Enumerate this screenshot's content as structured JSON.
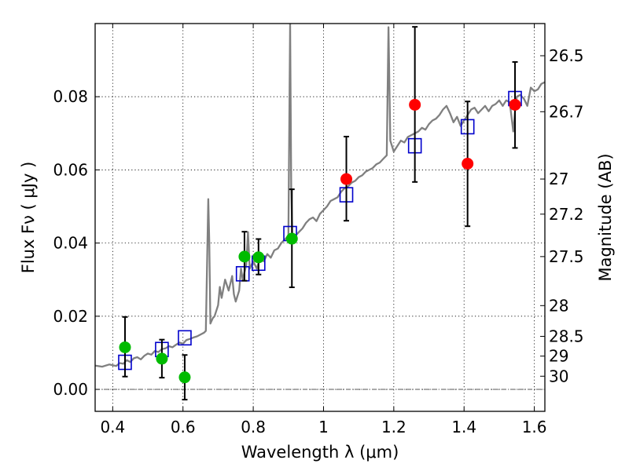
{
  "chart_data": {
    "type": "scatter",
    "xlabel": "Wavelength  λ (μm)",
    "ylabel": "Flux  Fν  ( μJy )",
    "y2label": "Magnitude (AB)",
    "xlim": [
      0.35,
      1.63
    ],
    "ylim": [
      -0.006,
      0.1
    ],
    "x_ticks": [
      0.4,
      0.6,
      0.8,
      1.0,
      1.2,
      1.4,
      1.6
    ],
    "x_tick_labels": [
      "0.4",
      "0.6",
      "0.8",
      "1",
      "1.2",
      "1.4",
      "1.6"
    ],
    "y_ticks": [
      0.0,
      0.02,
      0.04,
      0.06,
      0.08
    ],
    "y_tick_labels": [
      "0.00",
      "0.02",
      "0.04",
      "0.06",
      "0.08"
    ],
    "y2_ticks": [
      {
        "label": "26.5",
        "flux": 0.0912
      },
      {
        "label": "26.7",
        "flux": 0.0759
      },
      {
        "label": "27",
        "flux": 0.0575
      },
      {
        "label": "27.2",
        "flux": 0.0479
      },
      {
        "label": "27.5",
        "flux": 0.0363
      },
      {
        "label": "28",
        "flux": 0.0229
      },
      {
        "label": "28.5",
        "flux": 0.0145
      },
      {
        "label": "29",
        "flux": 0.0091
      },
      {
        "label": "30",
        "flux": 0.0036
      }
    ],
    "grid": true,
    "colors": {
      "spectrum": "#808080",
      "model": "#0000cc",
      "green": "#00bb00",
      "red": "#ff0000",
      "error": "#000000",
      "zero_line": "#555555"
    },
    "series": [
      {
        "name": "model-spectrum",
        "type": "line",
        "points": [
          [
            0.35,
            0.0065
          ],
          [
            0.37,
            0.0062
          ],
          [
            0.39,
            0.0068
          ],
          [
            0.41,
            0.0064
          ],
          [
            0.42,
            0.0072
          ],
          [
            0.43,
            0.007
          ],
          [
            0.44,
            0.008
          ],
          [
            0.45,
            0.0075
          ],
          [
            0.46,
            0.0085
          ],
          [
            0.47,
            0.0088
          ],
          [
            0.48,
            0.0082
          ],
          [
            0.49,
            0.0092
          ],
          [
            0.5,
            0.0098
          ],
          [
            0.51,
            0.0095
          ],
          [
            0.52,
            0.0105
          ],
          [
            0.53,
            0.0102
          ],
          [
            0.54,
            0.011
          ],
          [
            0.55,
            0.0112
          ],
          [
            0.56,
            0.0118
          ],
          [
            0.57,
            0.0115
          ],
          [
            0.58,
            0.0122
          ],
          [
            0.59,
            0.0128
          ],
          [
            0.6,
            0.0125
          ],
          [
            0.61,
            0.0135
          ],
          [
            0.62,
            0.0138
          ],
          [
            0.63,
            0.0142
          ],
          [
            0.64,
            0.0145
          ],
          [
            0.65,
            0.015
          ],
          [
            0.66,
            0.0155
          ],
          [
            0.665,
            0.016
          ],
          [
            0.672,
            0.052
          ],
          [
            0.675,
            0.04
          ],
          [
            0.678,
            0.018
          ],
          [
            0.685,
            0.0195
          ],
          [
            0.69,
            0.02
          ],
          [
            0.7,
            0.023
          ],
          [
            0.705,
            0.028
          ],
          [
            0.71,
            0.025
          ],
          [
            0.72,
            0.03
          ],
          [
            0.73,
            0.027
          ],
          [
            0.74,
            0.031
          ],
          [
            0.745,
            0.026
          ],
          [
            0.75,
            0.024
          ],
          [
            0.76,
            0.027
          ],
          [
            0.765,
            0.033
          ],
          [
            0.77,
            0.03
          ],
          [
            0.78,
            0.034
          ],
          [
            0.785,
            0.043
          ],
          [
            0.79,
            0.033
          ],
          [
            0.8,
            0.035
          ],
          [
            0.81,
            0.033
          ],
          [
            0.82,
            0.036
          ],
          [
            0.83,
            0.035
          ],
          [
            0.84,
            0.037
          ],
          [
            0.85,
            0.036
          ],
          [
            0.86,
            0.038
          ],
          [
            0.87,
            0.0385
          ],
          [
            0.88,
            0.04
          ],
          [
            0.89,
            0.041
          ],
          [
            0.9,
            0.042
          ],
          [
            0.905,
            0.1
          ],
          [
            0.908,
            0.055
          ],
          [
            0.912,
            0.04
          ],
          [
            0.92,
            0.042
          ],
          [
            0.93,
            0.043
          ],
          [
            0.94,
            0.044
          ],
          [
            0.95,
            0.0455
          ],
          [
            0.96,
            0.0465
          ],
          [
            0.97,
            0.047
          ],
          [
            0.98,
            0.046
          ],
          [
            0.99,
            0.048
          ],
          [
            1.0,
            0.049
          ],
          [
            1.01,
            0.05
          ],
          [
            1.02,
            0.0515
          ],
          [
            1.03,
            0.052
          ],
          [
            1.04,
            0.0525
          ],
          [
            1.05,
            0.054
          ],
          [
            1.06,
            0.055
          ],
          [
            1.07,
            0.0555
          ],
          [
            1.08,
            0.0565
          ],
          [
            1.09,
            0.057
          ],
          [
            1.1,
            0.058
          ],
          [
            1.11,
            0.0585
          ],
          [
            1.12,
            0.0595
          ],
          [
            1.13,
            0.06
          ],
          [
            1.14,
            0.0605
          ],
          [
            1.15,
            0.0615
          ],
          [
            1.16,
            0.062
          ],
          [
            1.17,
            0.063
          ],
          [
            1.18,
            0.064
          ],
          [
            1.185,
            0.099
          ],
          [
            1.19,
            0.068
          ],
          [
            1.2,
            0.065
          ],
          [
            1.21,
            0.0665
          ],
          [
            1.22,
            0.068
          ],
          [
            1.23,
            0.0675
          ],
          [
            1.24,
            0.069
          ],
          [
            1.25,
            0.0695
          ],
          [
            1.26,
            0.07
          ],
          [
            1.27,
            0.0705
          ],
          [
            1.28,
            0.0715
          ],
          [
            1.29,
            0.071
          ],
          [
            1.3,
            0.0725
          ],
          [
            1.31,
            0.0735
          ],
          [
            1.32,
            0.074
          ],
          [
            1.33,
            0.075
          ],
          [
            1.34,
            0.0765
          ],
          [
            1.35,
            0.0775
          ],
          [
            1.36,
            0.0755
          ],
          [
            1.37,
            0.073
          ],
          [
            1.38,
            0.0745
          ],
          [
            1.39,
            0.072
          ],
          [
            1.4,
            0.0735
          ],
          [
            1.41,
            0.075
          ],
          [
            1.42,
            0.0765
          ],
          [
            1.43,
            0.077
          ],
          [
            1.44,
            0.0755
          ],
          [
            1.45,
            0.0765
          ],
          [
            1.46,
            0.0775
          ],
          [
            1.47,
            0.076
          ],
          [
            1.48,
            0.0775
          ],
          [
            1.49,
            0.078
          ],
          [
            1.5,
            0.079
          ],
          [
            1.51,
            0.0775
          ],
          [
            1.52,
            0.079
          ],
          [
            1.53,
            0.0785
          ],
          [
            1.54,
            0.0705
          ],
          [
            1.545,
            0.076
          ],
          [
            1.55,
            0.08
          ],
          [
            1.56,
            0.0805
          ],
          [
            1.57,
            0.0795
          ],
          [
            1.58,
            0.0775
          ],
          [
            1.59,
            0.0825
          ],
          [
            1.6,
            0.0815
          ],
          [
            1.61,
            0.082
          ],
          [
            1.62,
            0.0835
          ],
          [
            1.63,
            0.084
          ]
        ]
      },
      {
        "name": "model-photometry",
        "marker": "square",
        "points": [
          [
            0.435,
            0.0074
          ],
          [
            0.54,
            0.0109
          ],
          [
            0.605,
            0.0141
          ],
          [
            0.77,
            0.0316
          ],
          [
            0.815,
            0.0345
          ],
          [
            0.905,
            0.0426
          ],
          [
            1.065,
            0.0532
          ],
          [
            1.26,
            0.0666
          ],
          [
            1.41,
            0.0718
          ],
          [
            1.545,
            0.0795
          ]
        ]
      },
      {
        "name": "observed-green",
        "marker": "circle",
        "points": [
          {
            "x": 0.435,
            "y": 0.0115,
            "lo": 0.0035,
            "hi": 0.0198
          },
          {
            "x": 0.54,
            "y": 0.0084,
            "lo": 0.0032,
            "hi": 0.0136
          },
          {
            "x": 0.605,
            "y": 0.0033,
            "lo": -0.0028,
            "hi": 0.0094
          },
          {
            "x": 0.775,
            "y": 0.0363,
            "lo": 0.0297,
            "hi": 0.0431
          },
          {
            "x": 0.815,
            "y": 0.0361,
            "lo": 0.0314,
            "hi": 0.0411
          },
          {
            "x": 0.91,
            "y": 0.0412,
            "lo": 0.0279,
            "hi": 0.0547
          }
        ]
      },
      {
        "name": "observed-red",
        "marker": "circle",
        "points": [
          {
            "x": 1.065,
            "y": 0.0575,
            "lo": 0.0461,
            "hi": 0.0691
          },
          {
            "x": 1.26,
            "y": 0.0778,
            "lo": 0.0567,
            "hi": 0.0991
          },
          {
            "x": 1.41,
            "y": 0.0617,
            "lo": 0.0446,
            "hi": 0.0787
          },
          {
            "x": 1.545,
            "y": 0.0778,
            "lo": 0.066,
            "hi": 0.0895
          }
        ]
      }
    ]
  }
}
